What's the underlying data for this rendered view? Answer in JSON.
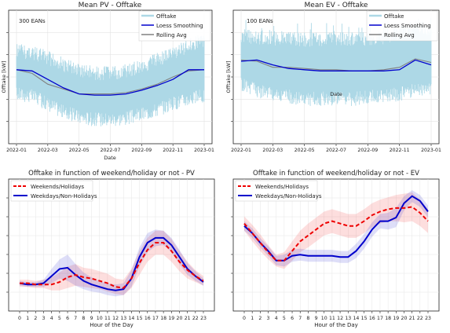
{
  "chart_data": [
    {
      "type": "line",
      "title": "Mean PV - Offtake",
      "annotation": "300 EANs",
      "xlabel": "Date",
      "ylabel": "Offtake [kW]",
      "x_ticks": [
        "2022-01",
        "2022-03",
        "2022-05",
        "2022-07",
        "2022-09",
        "2022-11",
        "2023-01"
      ],
      "grid": true,
      "legend": "top-right",
      "colors": {
        "offtake": "#add8e6",
        "smoothing": "#0000cc",
        "rolling": "#808080"
      },
      "series": [
        {
          "name": "Offtake",
          "kind": "band",
          "x": [
            "2022-01",
            "2022-02",
            "2022-03",
            "2022-04",
            "2022-05",
            "2022-06",
            "2022-07",
            "2022-08",
            "2022-09",
            "2022-10",
            "2022-11",
            "2022-12",
            "2023-01"
          ],
          "upper": [
            0.78,
            0.76,
            0.72,
            0.66,
            0.61,
            0.59,
            0.59,
            0.61,
            0.65,
            0.7,
            0.75,
            0.82,
            0.87
          ],
          "lower": [
            0.3,
            0.28,
            0.22,
            0.15,
            0.11,
            0.09,
            0.09,
            0.1,
            0.13,
            0.17,
            0.22,
            0.26,
            0.28
          ]
        },
        {
          "name": "Loess Smoothing",
          "x": [
            "2022-01",
            "2022-02",
            "2022-03",
            "2022-04",
            "2022-05",
            "2022-06",
            "2022-07",
            "2022-08",
            "2022-09",
            "2022-10",
            "2022-11",
            "2022-12",
            "2023-01"
          ],
          "y": [
            0.56,
            0.55,
            0.48,
            0.41,
            0.36,
            0.35,
            0.35,
            0.36,
            0.39,
            0.43,
            0.48,
            0.56,
            0.56
          ]
        },
        {
          "name": "Rolling Avg",
          "x": [
            "2022-01",
            "2022-02",
            "2022-03",
            "2022-04",
            "2022-05",
            "2022-06",
            "2022-07",
            "2022-08",
            "2022-09",
            "2022-10",
            "2022-11",
            "2022-12",
            "2023-01"
          ],
          "y": [
            0.56,
            0.53,
            0.44,
            0.4,
            0.36,
            0.36,
            0.36,
            0.37,
            0.4,
            0.44,
            0.5,
            0.55,
            0.56
          ]
        }
      ]
    },
    {
      "type": "line",
      "title": "Mean EV - Offtake",
      "annotation": "100 EANs",
      "xlabel": "Date",
      "ylabel": "Offtake [kW]",
      "x_ticks": [
        "2022-01",
        "2022-03",
        "2022-05",
        "2022-07",
        "2022-09",
        "2022-11",
        "2023-01"
      ],
      "grid": true,
      "legend": "top-right",
      "colors": {
        "offtake": "#add8e6",
        "smoothing": "#0000cc",
        "rolling": "#808080"
      },
      "series": [
        {
          "name": "Offtake",
          "kind": "band",
          "x": [
            "2022-01",
            "2022-02",
            "2022-03",
            "2022-04",
            "2022-05",
            "2022-06",
            "2022-07",
            "2022-08",
            "2022-09",
            "2022-10",
            "2022-11",
            "2022-12",
            "2023-01"
          ],
          "upper": [
            0.9,
            0.89,
            0.88,
            0.88,
            0.87,
            0.87,
            0.87,
            0.87,
            0.88,
            0.89,
            0.92,
            0.97,
            0.95
          ],
          "lower": [
            0.38,
            0.33,
            0.29,
            0.28,
            0.26,
            0.26,
            0.26,
            0.26,
            0.27,
            0.28,
            0.3,
            0.33,
            0.35
          ]
        },
        {
          "name": "Loess Smoothing",
          "x": [
            "2022-01",
            "2022-02",
            "2022-03",
            "2022-04",
            "2022-05",
            "2022-06",
            "2022-07",
            "2022-08",
            "2022-09",
            "2022-10",
            "2022-11",
            "2022-12",
            "2023-01"
          ],
          "y": [
            0.63,
            0.64,
            0.6,
            0.57,
            0.56,
            0.55,
            0.55,
            0.55,
            0.55,
            0.55,
            0.56,
            0.64,
            0.6
          ]
        },
        {
          "name": "Rolling Avg",
          "x": [
            "2022-01",
            "2022-02",
            "2022-03",
            "2022-04",
            "2022-05",
            "2022-06",
            "2022-07",
            "2022-08",
            "2022-09",
            "2022-10",
            "2022-11",
            "2022-12",
            "2023-01"
          ],
          "y": [
            0.64,
            0.63,
            0.58,
            0.58,
            0.57,
            0.56,
            0.56,
            0.55,
            0.55,
            0.56,
            0.58,
            0.65,
            0.62
          ]
        }
      ]
    },
    {
      "type": "line",
      "title": "Offtake in function of weekend/holiday or not - PV",
      "xlabel": "Hour of the Day",
      "x": [
        0,
        1,
        2,
        3,
        4,
        5,
        6,
        7,
        8,
        9,
        10,
        11,
        12,
        13,
        14,
        15,
        16,
        17,
        18,
        19,
        20,
        21,
        22,
        23
      ],
      "grid": true,
      "legend": "top-left",
      "colors": {
        "weekend": "#ee0000",
        "weekday": "#0000cc"
      },
      "series": [
        {
          "name": "Weekends/Holidays",
          "style": "dashed",
          "y": [
            0.18,
            0.18,
            0.17,
            0.17,
            0.17,
            0.19,
            0.23,
            0.25,
            0.23,
            0.22,
            0.2,
            0.18,
            0.15,
            0.14,
            0.22,
            0.35,
            0.46,
            0.52,
            0.52,
            0.45,
            0.36,
            0.29,
            0.24,
            0.2
          ],
          "upper": [
            0.21,
            0.21,
            0.2,
            0.21,
            0.23,
            0.27,
            0.32,
            0.34,
            0.31,
            0.3,
            0.28,
            0.26,
            0.22,
            0.21,
            0.3,
            0.45,
            0.56,
            0.62,
            0.62,
            0.55,
            0.45,
            0.36,
            0.29,
            0.24
          ],
          "lower": [
            0.15,
            0.15,
            0.14,
            0.14,
            0.12,
            0.12,
            0.14,
            0.16,
            0.15,
            0.14,
            0.13,
            0.11,
            0.09,
            0.08,
            0.14,
            0.25,
            0.36,
            0.42,
            0.42,
            0.36,
            0.28,
            0.22,
            0.19,
            0.16
          ]
        },
        {
          "name": "Weekdays/Non-Holidays",
          "style": "solid",
          "y": [
            0.18,
            0.17,
            0.17,
            0.18,
            0.24,
            0.3,
            0.31,
            0.25,
            0.2,
            0.17,
            0.15,
            0.13,
            0.12,
            0.13,
            0.22,
            0.4,
            0.52,
            0.56,
            0.56,
            0.5,
            0.4,
            0.3,
            0.24,
            0.19
          ],
          "upper": [
            0.2,
            0.19,
            0.19,
            0.21,
            0.3,
            0.38,
            0.42,
            0.34,
            0.27,
            0.23,
            0.2,
            0.18,
            0.17,
            0.18,
            0.29,
            0.48,
            0.6,
            0.63,
            0.62,
            0.56,
            0.46,
            0.35,
            0.28,
            0.22
          ],
          "lower": [
            0.16,
            0.15,
            0.15,
            0.15,
            0.18,
            0.22,
            0.2,
            0.16,
            0.13,
            0.11,
            0.1,
            0.08,
            0.07,
            0.08,
            0.15,
            0.32,
            0.44,
            0.49,
            0.5,
            0.44,
            0.34,
            0.25,
            0.2,
            0.16
          ]
        }
      ]
    },
    {
      "type": "line",
      "title": "Offtake in function of weekend/holiday or not - EV",
      "xlabel": "Hour of the Day",
      "x": [
        0,
        1,
        2,
        3,
        4,
        5,
        6,
        7,
        8,
        9,
        10,
        11,
        12,
        13,
        14,
        15,
        16,
        17,
        18,
        19,
        20,
        21,
        22,
        23
      ],
      "grid": true,
      "legend": "top-left",
      "colors": {
        "weekend": "#ee0000",
        "weekday": "#0000cc"
      },
      "series": [
        {
          "name": "Weekends/Holidays",
          "style": "dashed",
          "y": [
            0.68,
            0.6,
            0.52,
            0.44,
            0.37,
            0.37,
            0.45,
            0.53,
            0.58,
            0.63,
            0.68,
            0.7,
            0.68,
            0.66,
            0.66,
            0.7,
            0.75,
            0.78,
            0.8,
            0.81,
            0.81,
            0.82,
            0.77,
            0.7
          ],
          "upper": [
            0.74,
            0.67,
            0.59,
            0.5,
            0.42,
            0.44,
            0.53,
            0.62,
            0.68,
            0.73,
            0.78,
            0.8,
            0.78,
            0.76,
            0.76,
            0.8,
            0.85,
            0.88,
            0.9,
            0.92,
            0.93,
            0.94,
            0.88,
            0.8
          ],
          "lower": [
            0.62,
            0.53,
            0.45,
            0.38,
            0.32,
            0.3,
            0.37,
            0.44,
            0.48,
            0.53,
            0.58,
            0.6,
            0.58,
            0.56,
            0.56,
            0.6,
            0.65,
            0.68,
            0.7,
            0.7,
            0.69,
            0.7,
            0.66,
            0.6
          ]
        },
        {
          "name": "Weekdays/Non-Holidays",
          "style": "solid",
          "y": [
            0.66,
            0.6,
            0.52,
            0.45,
            0.37,
            0.37,
            0.41,
            0.42,
            0.41,
            0.41,
            0.41,
            0.41,
            0.4,
            0.4,
            0.45,
            0.53,
            0.63,
            0.7,
            0.7,
            0.73,
            0.85,
            0.91,
            0.87,
            0.78
          ],
          "upper": [
            0.7,
            0.64,
            0.56,
            0.49,
            0.41,
            0.42,
            0.46,
            0.47,
            0.46,
            0.46,
            0.46,
            0.46,
            0.45,
            0.45,
            0.51,
            0.59,
            0.69,
            0.76,
            0.77,
            0.81,
            0.91,
            0.96,
            0.92,
            0.83
          ],
          "lower": [
            0.62,
            0.56,
            0.48,
            0.41,
            0.33,
            0.32,
            0.36,
            0.37,
            0.36,
            0.36,
            0.36,
            0.36,
            0.35,
            0.35,
            0.39,
            0.47,
            0.57,
            0.64,
            0.63,
            0.65,
            0.79,
            0.86,
            0.82,
            0.73
          ]
        }
      ]
    }
  ]
}
